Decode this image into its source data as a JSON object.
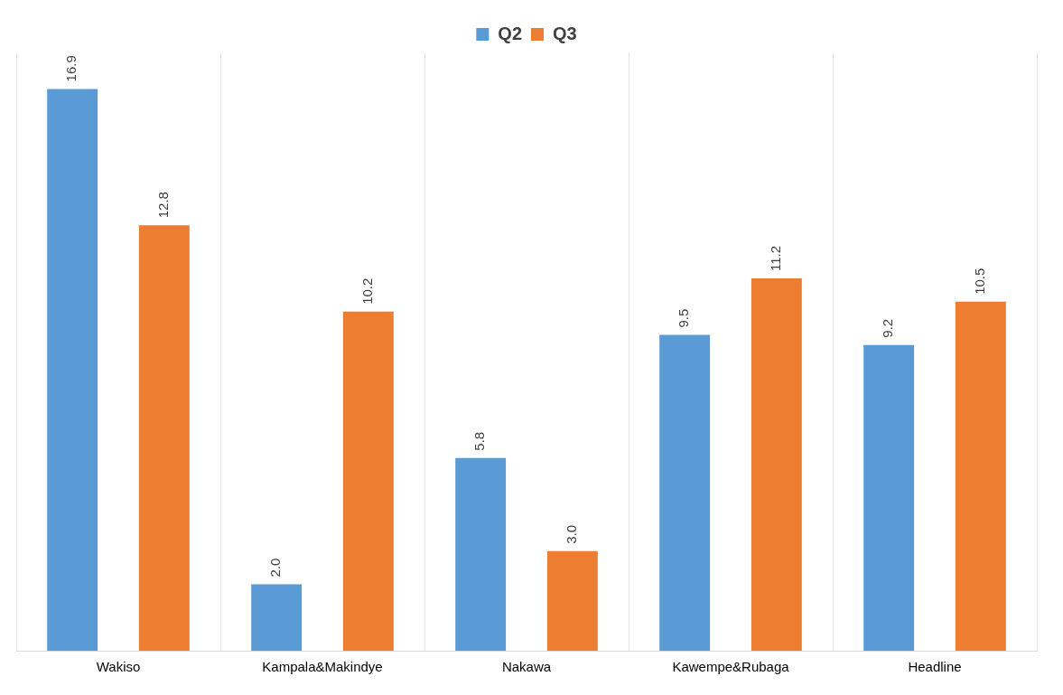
{
  "chart_data": {
    "type": "bar",
    "categories": [
      "Wakiso",
      "Kampala&Makindye",
      "Nakawa",
      "Kawempe&Rubaga",
      "Headline"
    ],
    "series": [
      {
        "name": "Q2",
        "color": "#5b9bd5",
        "values": [
          16.9,
          2.0,
          5.8,
          9.5,
          9.2
        ],
        "value_labels": [
          "16.9",
          "2.0",
          "5.8",
          "9.5",
          "9.2"
        ]
      },
      {
        "name": "Q3",
        "color": "#ed7d31",
        "values": [
          12.8,
          10.2,
          3.0,
          11.2,
          10.5
        ],
        "value_labels": [
          "12.8",
          "10.2",
          "3.0",
          "11.2",
          "10.5"
        ]
      }
    ],
    "grid": "x",
    "legend": "top",
    "tick_labels": "x"
  }
}
